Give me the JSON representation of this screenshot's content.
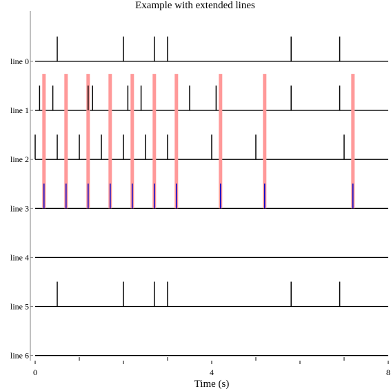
{
  "chart_data": {
    "type": "raster",
    "title": "Example with extended lines",
    "xlabel": "Time (s)",
    "xlim": [
      0,
      8
    ],
    "x_ticks": [
      0,
      2,
      4,
      6,
      8
    ],
    "x_tick_labels": [
      "0",
      "",
      "4",
      "",
      "8"
    ],
    "categories": [
      "line 0",
      "line 1",
      "line 2",
      "line 3",
      "line 4",
      "line 5",
      "line 6"
    ],
    "series": [
      {
        "events": [
          0.5,
          2.0,
          2.7,
          3.0,
          5.8,
          6.9
        ]
      },
      {
        "events": [
          0.1,
          0.4,
          1.2,
          1.3,
          2.1,
          2.4,
          3.5,
          4.1,
          5.8,
          6.9
        ]
      },
      {
        "events": [
          0.0,
          0.5,
          1.0,
          1.5,
          2.0,
          2.5,
          3.0,
          4.0,
          5.0,
          7.0
        ]
      },
      {
        "events": [
          0.2,
          0.7,
          1.2,
          1.7,
          2.2,
          2.7,
          3.2,
          4.2,
          5.2,
          7.2
        ],
        "color": "#0000cc"
      },
      {
        "events": []
      },
      {
        "events": [
          0.5,
          2.0,
          2.7,
          3.0,
          5.8,
          6.9
        ]
      },
      {
        "events": []
      }
    ],
    "extended_lines": {
      "row": 3,
      "color": "#ff9999",
      "reaches_row": 1
    },
    "grid": false,
    "legend": "none"
  }
}
